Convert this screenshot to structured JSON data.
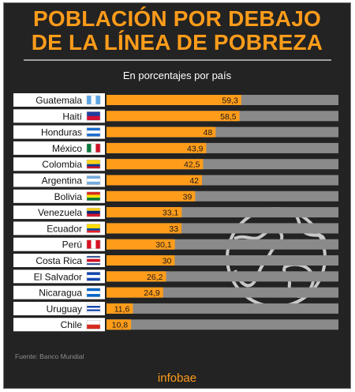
{
  "header": {
    "title_line1": "POBLACIÓN POR DEBAJO",
    "title_line2": "DE LA LÍNEA DE POBREZA",
    "subtitle": "En porcentajes por país"
  },
  "footer": {
    "source": "Fuente: Banco Mundial",
    "brand": "infobae"
  },
  "colors": {
    "background": "#232323",
    "accent": "#ff9c1a",
    "bar_track": "#8a8a8a",
    "label_box": "#ffffff"
  },
  "icons": [
    "globe-icon"
  ],
  "chart_data": {
    "type": "bar",
    "orientation": "horizontal",
    "title": "POBLACIÓN POR DEBAJO DE LA LÍNEA DE POBREZA",
    "subtitle": "En porcentajes por país",
    "categories": [
      "Guatemala",
      "Haití",
      "Honduras",
      "México",
      "Colombia",
      "Argentina",
      "Bolivia",
      "Venezuela",
      "Ecuador",
      "Perú",
      "Costa Rica",
      "El Salvador",
      "Nicaragua",
      "Uruguay",
      "Chile"
    ],
    "values": [
      59.3,
      58.5,
      48,
      43.9,
      42.5,
      42,
      39,
      33.1,
      33,
      30.1,
      30,
      26.2,
      24.9,
      11.6,
      10.8
    ],
    "value_labels": [
      "59,3",
      "58,5",
      "48",
      "43,9",
      "42,5",
      "42",
      "39",
      "33,1",
      "33",
      "30,1",
      "30",
      "26,2",
      "24,9",
      "11,6",
      "10,8"
    ],
    "xlim": [
      0,
      100
    ],
    "grid": false,
    "legend": "none"
  }
}
